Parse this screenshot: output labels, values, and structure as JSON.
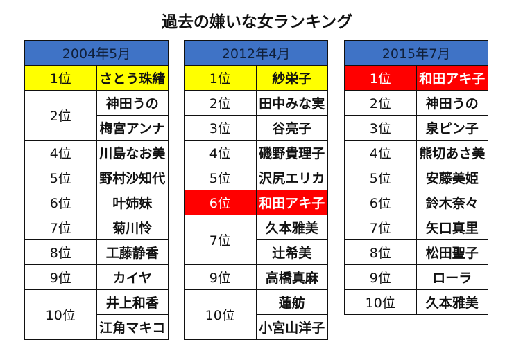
{
  "title": "過去の嫌いな女ランキング",
  "tables": [
    {
      "header": "2004年5月",
      "rows": [
        {
          "rank": "1位",
          "names": [
            "さとう珠緒"
          ],
          "highlight": "#ffff00"
        },
        {
          "rank": "2位",
          "names": [
            "神田うの",
            "梅宮アンナ"
          ]
        },
        {
          "rank": "4位",
          "names": [
            "川島なお美"
          ]
        },
        {
          "rank": "5位",
          "names": [
            "野村沙知代"
          ]
        },
        {
          "rank": "6位",
          "names": [
            "叶姉妹"
          ]
        },
        {
          "rank": "7位",
          "names": [
            "菊川怜"
          ]
        },
        {
          "rank": "8位",
          "names": [
            "工藤静香"
          ]
        },
        {
          "rank": "9位",
          "names": [
            "カイヤ"
          ]
        },
        {
          "rank": "10位",
          "names": [
            "井上和香",
            "江角マキコ"
          ]
        }
      ]
    },
    {
      "header": "2012年4月",
      "rows": [
        {
          "rank": "1位",
          "names": [
            "紗栄子"
          ],
          "highlight": "#ffff00"
        },
        {
          "rank": "2位",
          "names": [
            "田中みな実"
          ]
        },
        {
          "rank": "3位",
          "names": [
            "谷亮子"
          ]
        },
        {
          "rank": "4位",
          "names": [
            "磯野貴理子"
          ]
        },
        {
          "rank": "5位",
          "names": [
            "沢尻エリカ"
          ]
        },
        {
          "rank": "6位",
          "names": [
            "和田アキ子"
          ],
          "highlight": "#ff0000"
        },
        {
          "rank": "7位",
          "names": [
            "久本雅美",
            "辻希美"
          ]
        },
        {
          "rank": "9位",
          "names": [
            "高橋真麻"
          ]
        },
        {
          "rank": "10位",
          "names": [
            "蓮舫",
            "小宮山洋子"
          ]
        }
      ]
    },
    {
      "header": "2015年7月",
      "rows": [
        {
          "rank": "1位",
          "names": [
            "和田アキ子"
          ],
          "highlight": "#ff0000"
        },
        {
          "rank": "2位",
          "names": [
            "神田うの"
          ]
        },
        {
          "rank": "3位",
          "names": [
            "泉ピン子"
          ]
        },
        {
          "rank": "4位",
          "names": [
            "熊切あさ美"
          ]
        },
        {
          "rank": "5位",
          "names": [
            "安藤美姫"
          ]
        },
        {
          "rank": "6位",
          "names": [
            "鈴木奈々"
          ]
        },
        {
          "rank": "7位",
          "names": [
            "矢口真里"
          ]
        },
        {
          "rank": "8位",
          "names": [
            "松田聖子"
          ]
        },
        {
          "rank": "9位",
          "names": [
            "ローラ"
          ]
        },
        {
          "rank": "10位",
          "names": [
            "久本雅美"
          ]
        }
      ]
    }
  ]
}
